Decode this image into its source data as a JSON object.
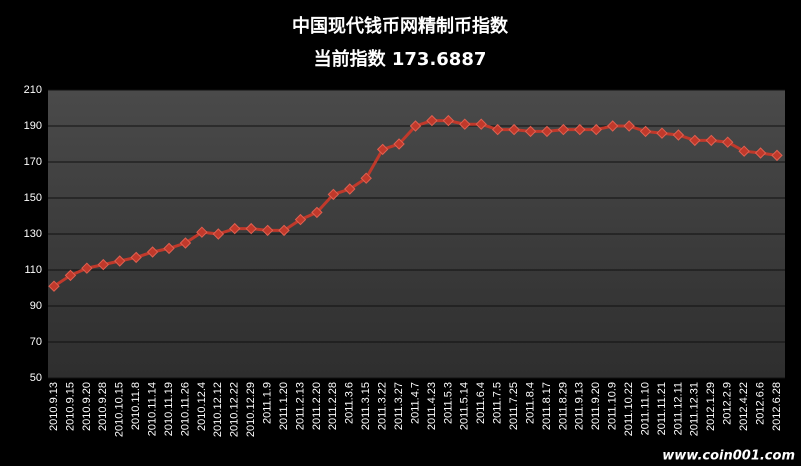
{
  "chart_data": {
    "type": "line",
    "title": "中国现代钱币网精制币指数",
    "subtitle": "当前指数 173.6887",
    "watermark": "www.coin001.com",
    "categories": [
      "2010.9.13",
      "2010.9.15",
      "2010.9.20",
      "2010.9.28",
      "2010.10.15",
      "2010.11.8",
      "2010.11.14",
      "2010.11.19",
      "2010.11.26",
      "2010.12.4",
      "2010.12.12",
      "2010.12.22",
      "2010.12.29",
      "2011.1.9",
      "2011.1.20",
      "2011.2.13",
      "2011.2.20",
      "2011.2.28",
      "2011.3.6",
      "2011.3.15",
      "2011.3.22",
      "2011.3.27",
      "2011.4.7",
      "2011.4.23",
      "2011.5.3",
      "2011.5.14",
      "2011.6.4",
      "2011.7.5",
      "2011.7.25",
      "2011.8.4",
      "2011.8.17",
      "2011.8.29",
      "2011.9.13",
      "2011.9.20",
      "2011.10.9",
      "2011.10.22",
      "2011.11.10",
      "2011.11.21",
      "2011.12.11",
      "2011.12.31",
      "2012.1.29",
      "2012.2.9",
      "2012.4.22",
      "2012.6.6",
      "2012.6.28"
    ],
    "values": [
      101,
      107,
      111,
      113,
      115,
      117,
      120,
      122,
      125,
      131,
      130,
      133,
      133,
      132,
      132,
      138,
      142,
      152,
      155,
      161,
      177,
      180,
      190,
      193,
      193,
      191,
      191,
      188,
      188,
      187,
      187,
      188,
      188,
      188,
      190,
      190,
      187,
      186,
      185,
      182,
      182,
      181,
      176,
      175,
      173.6887
    ],
    "color": "#c0392b",
    "ylim": [
      50,
      210
    ],
    "yticks": [
      50,
      70,
      90,
      110,
      130,
      150,
      170,
      190,
      210
    ],
    "grid": true
  }
}
